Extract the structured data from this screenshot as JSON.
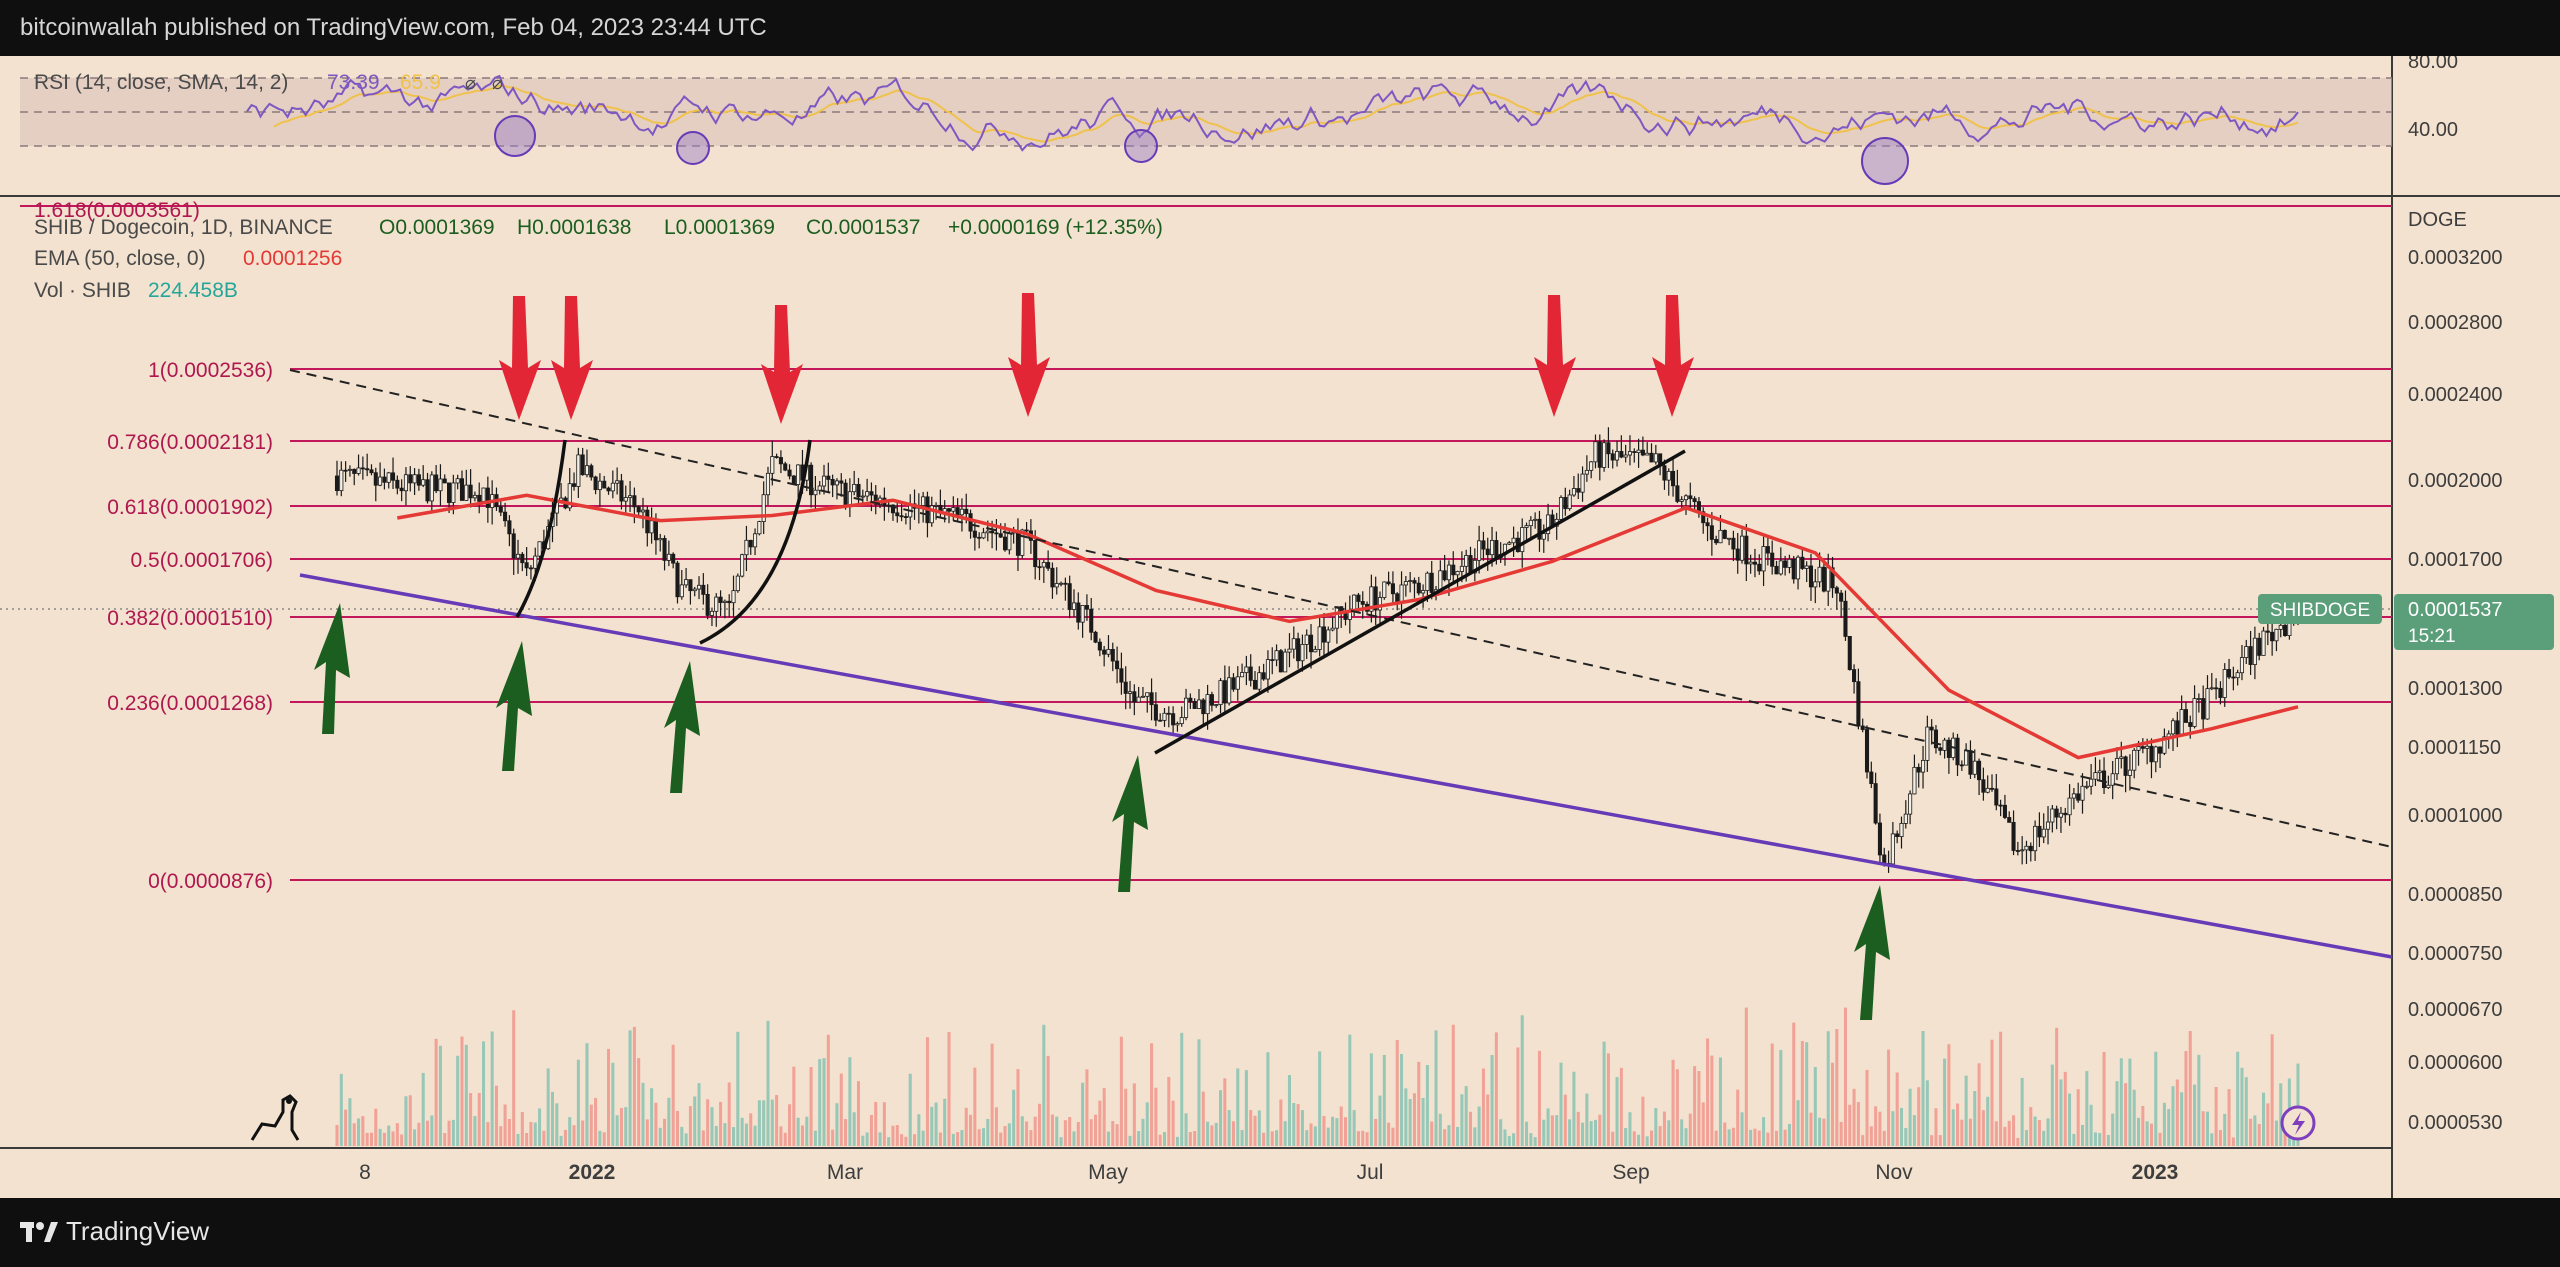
{
  "header": {
    "credit": "bitcoinwallah published on TradingView.com, Feb 04, 2023 23:44 UTC"
  },
  "footer": {
    "brand": "TradingView"
  },
  "rsi": {
    "label": "RSI (14, close, SMA, 14, 2)",
    "value": "73.39",
    "sma_value": "65.9",
    "axis": [
      "80.00",
      "40.00"
    ],
    "colors": {
      "rsi": "#7e57c2",
      "sma": "#f0c24b"
    }
  },
  "legend": {
    "symbol": "SHIB / Dogecoin, 1D, BINANCE",
    "ohlc": {
      "o": "O0.0001369",
      "h": "H0.0001638",
      "l": "L0.0001369",
      "c": "C0.0001537",
      "chg": "+0.0000169 (+12.35%)"
    },
    "ema_label": "EMA (50, close, 0)",
    "ema_value": "0.0001256",
    "vol_label": "Vol · SHIB",
    "vol_value": "224.458B"
  },
  "price_axis": {
    "currency": "DOGE",
    "ticks": [
      "0.0003200",
      "0.0002800",
      "0.0002400",
      "0.0002000",
      "0.0001700",
      "0.0001300",
      "0.0001150",
      "0.0001000",
      "0.0000850",
      "0.0000750",
      "0.0000670",
      "0.0000600",
      "0.0000530"
    ],
    "current_symbol": "SHIBDOGE",
    "current_price": "0.0001537",
    "countdown": "15:21"
  },
  "fib_levels": [
    {
      "label": "1.618(0.0003561)"
    },
    {
      "label": "1(0.0002536)"
    },
    {
      "label": "0.786(0.0002181)"
    },
    {
      "label": "0.618(0.0001902)"
    },
    {
      "label": "0.5(0.0001706)"
    },
    {
      "label": "0.382(0.0001510)"
    },
    {
      "label": "0.236(0.0001268)"
    },
    {
      "label": "0(0.0000876)"
    }
  ],
  "time_axis": [
    "8",
    "2022",
    "Mar",
    "May",
    "Jul",
    "Sep",
    "Nov",
    "2023"
  ],
  "colors": {
    "background": "#f2e2cf",
    "fib": "#c2185b",
    "ema": "#e53935",
    "trend": "#673ab7",
    "up": "#26a69a",
    "down": "#ef5350",
    "badge": "#5b9e7a"
  },
  "chart_data": {
    "type": "candlestick",
    "title": "SHIB / Dogecoin, 1D, BINANCE",
    "scale": "log",
    "ylim": [
      5e-05,
      0.00034
    ],
    "ohlc_latest": {
      "open": 0.0001369,
      "high": 0.0001638,
      "low": 0.0001369,
      "close": 0.0001537
    },
    "close_series": {
      "x": [
        "2021-11-06",
        "2021-11-15",
        "2021-12-01",
        "2021-12-10",
        "2021-12-20",
        "2022-01-01",
        "2022-01-15",
        "2022-01-25",
        "2022-02-05",
        "2022-02-15",
        "2022-03-01",
        "2022-03-15",
        "2022-04-01",
        "2022-04-15",
        "2022-05-01",
        "2022-05-10",
        "2022-05-20",
        "2022-06-01",
        "2022-06-15",
        "2022-07-01",
        "2022-07-15",
        "2022-08-01",
        "2022-08-14",
        "2022-08-25",
        "2022-09-08",
        "2022-09-20",
        "2022-10-01",
        "2022-10-20",
        "2022-10-31",
        "2022-11-10",
        "2022-11-20",
        "2022-12-01",
        "2022-12-15",
        "2023-01-01",
        "2023-01-15",
        "2023-01-25",
        "2023-02-04"
      ],
      "values": [
        0.000203,
        0.0002,
        0.000197,
        0.000198,
        0.000165,
        0.000206,
        0.00019,
        0.00016,
        0.000153,
        0.000208,
        0.000197,
        0.000192,
        0.000185,
        0.000176,
        0.000147,
        0.000127,
        0.000124,
        0.00013,
        0.00014,
        0.000156,
        0.000162,
        0.000175,
        0.000182,
        0.000212,
        0.000208,
        0.000182,
        0.000172,
        0.000162,
        9e-05,
        0.000118,
        0.000112,
        9.3e-05,
        0.000105,
        0.000115,
        0.000128,
        0.000142,
        0.0001537
      ]
    },
    "ema50": {
      "x": [
        "2021-11-20",
        "2021-12-20",
        "2022-01-20",
        "2022-02-15",
        "2022-03-15",
        "2022-04-15",
        "2022-05-15",
        "2022-06-15",
        "2022-07-15",
        "2022-08-15",
        "2022-09-15",
        "2022-10-15",
        "2022-11-15",
        "2022-12-15",
        "2023-01-15",
        "2023-02-04"
      ],
      "values": [
        0.000186,
        0.000195,
        0.000185,
        0.000187,
        0.000193,
        0.00018,
        0.00016,
        0.00015,
        0.000157,
        0.00017,
        0.00019,
        0.000173,
        0.00013,
        0.000113,
        0.00012,
        0.0001256
      ]
    }
  }
}
